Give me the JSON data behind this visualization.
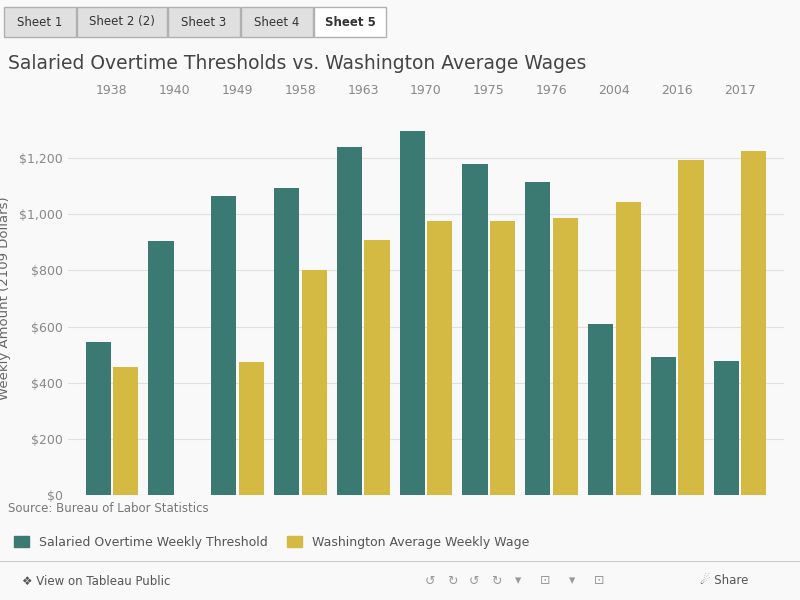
{
  "title": "Salaried Overtime Thresholds vs. Washington Average Wages",
  "ylabel": "Weekly Amount (2109 Dollars)",
  "source": "Source: Bureau of Labor Statistics",
  "legend_teal": "Salaried Overtime Weekly Threshold",
  "legend_gold": "Washington Average Weekly Wage",
  "years": [
    "1938",
    "1940",
    "1949",
    "1958",
    "1963",
    "1970",
    "1975",
    "1976",
    "2004",
    "2016",
    "2017"
  ],
  "teal_values": [
    545,
    905,
    1065,
    1095,
    1240,
    1295,
    1180,
    1115,
    610,
    490,
    478
  ],
  "gold_values": [
    455,
    null,
    475,
    800,
    910,
    975,
    975,
    985,
    1045,
    1195,
    1225
  ],
  "teal_color": "#3a7a72",
  "gold_color": "#d4b942",
  "ylim": [
    0,
    1400
  ],
  "yticks": [
    0,
    200,
    400,
    600,
    800,
    1000,
    1200
  ],
  "ytick_labels": [
    "$0",
    "$200",
    "$400",
    "$600",
    "$800",
    "$1,000",
    "$1,200"
  ],
  "background_color": "#f9f9f9",
  "grid_color": "#e0e0e0",
  "tab_labels": [
    "Sheet 1",
    "Sheet 2 (2)",
    "Sheet 3",
    "Sheet 4",
    "Sheet 5"
  ],
  "active_tab": "Sheet 5"
}
